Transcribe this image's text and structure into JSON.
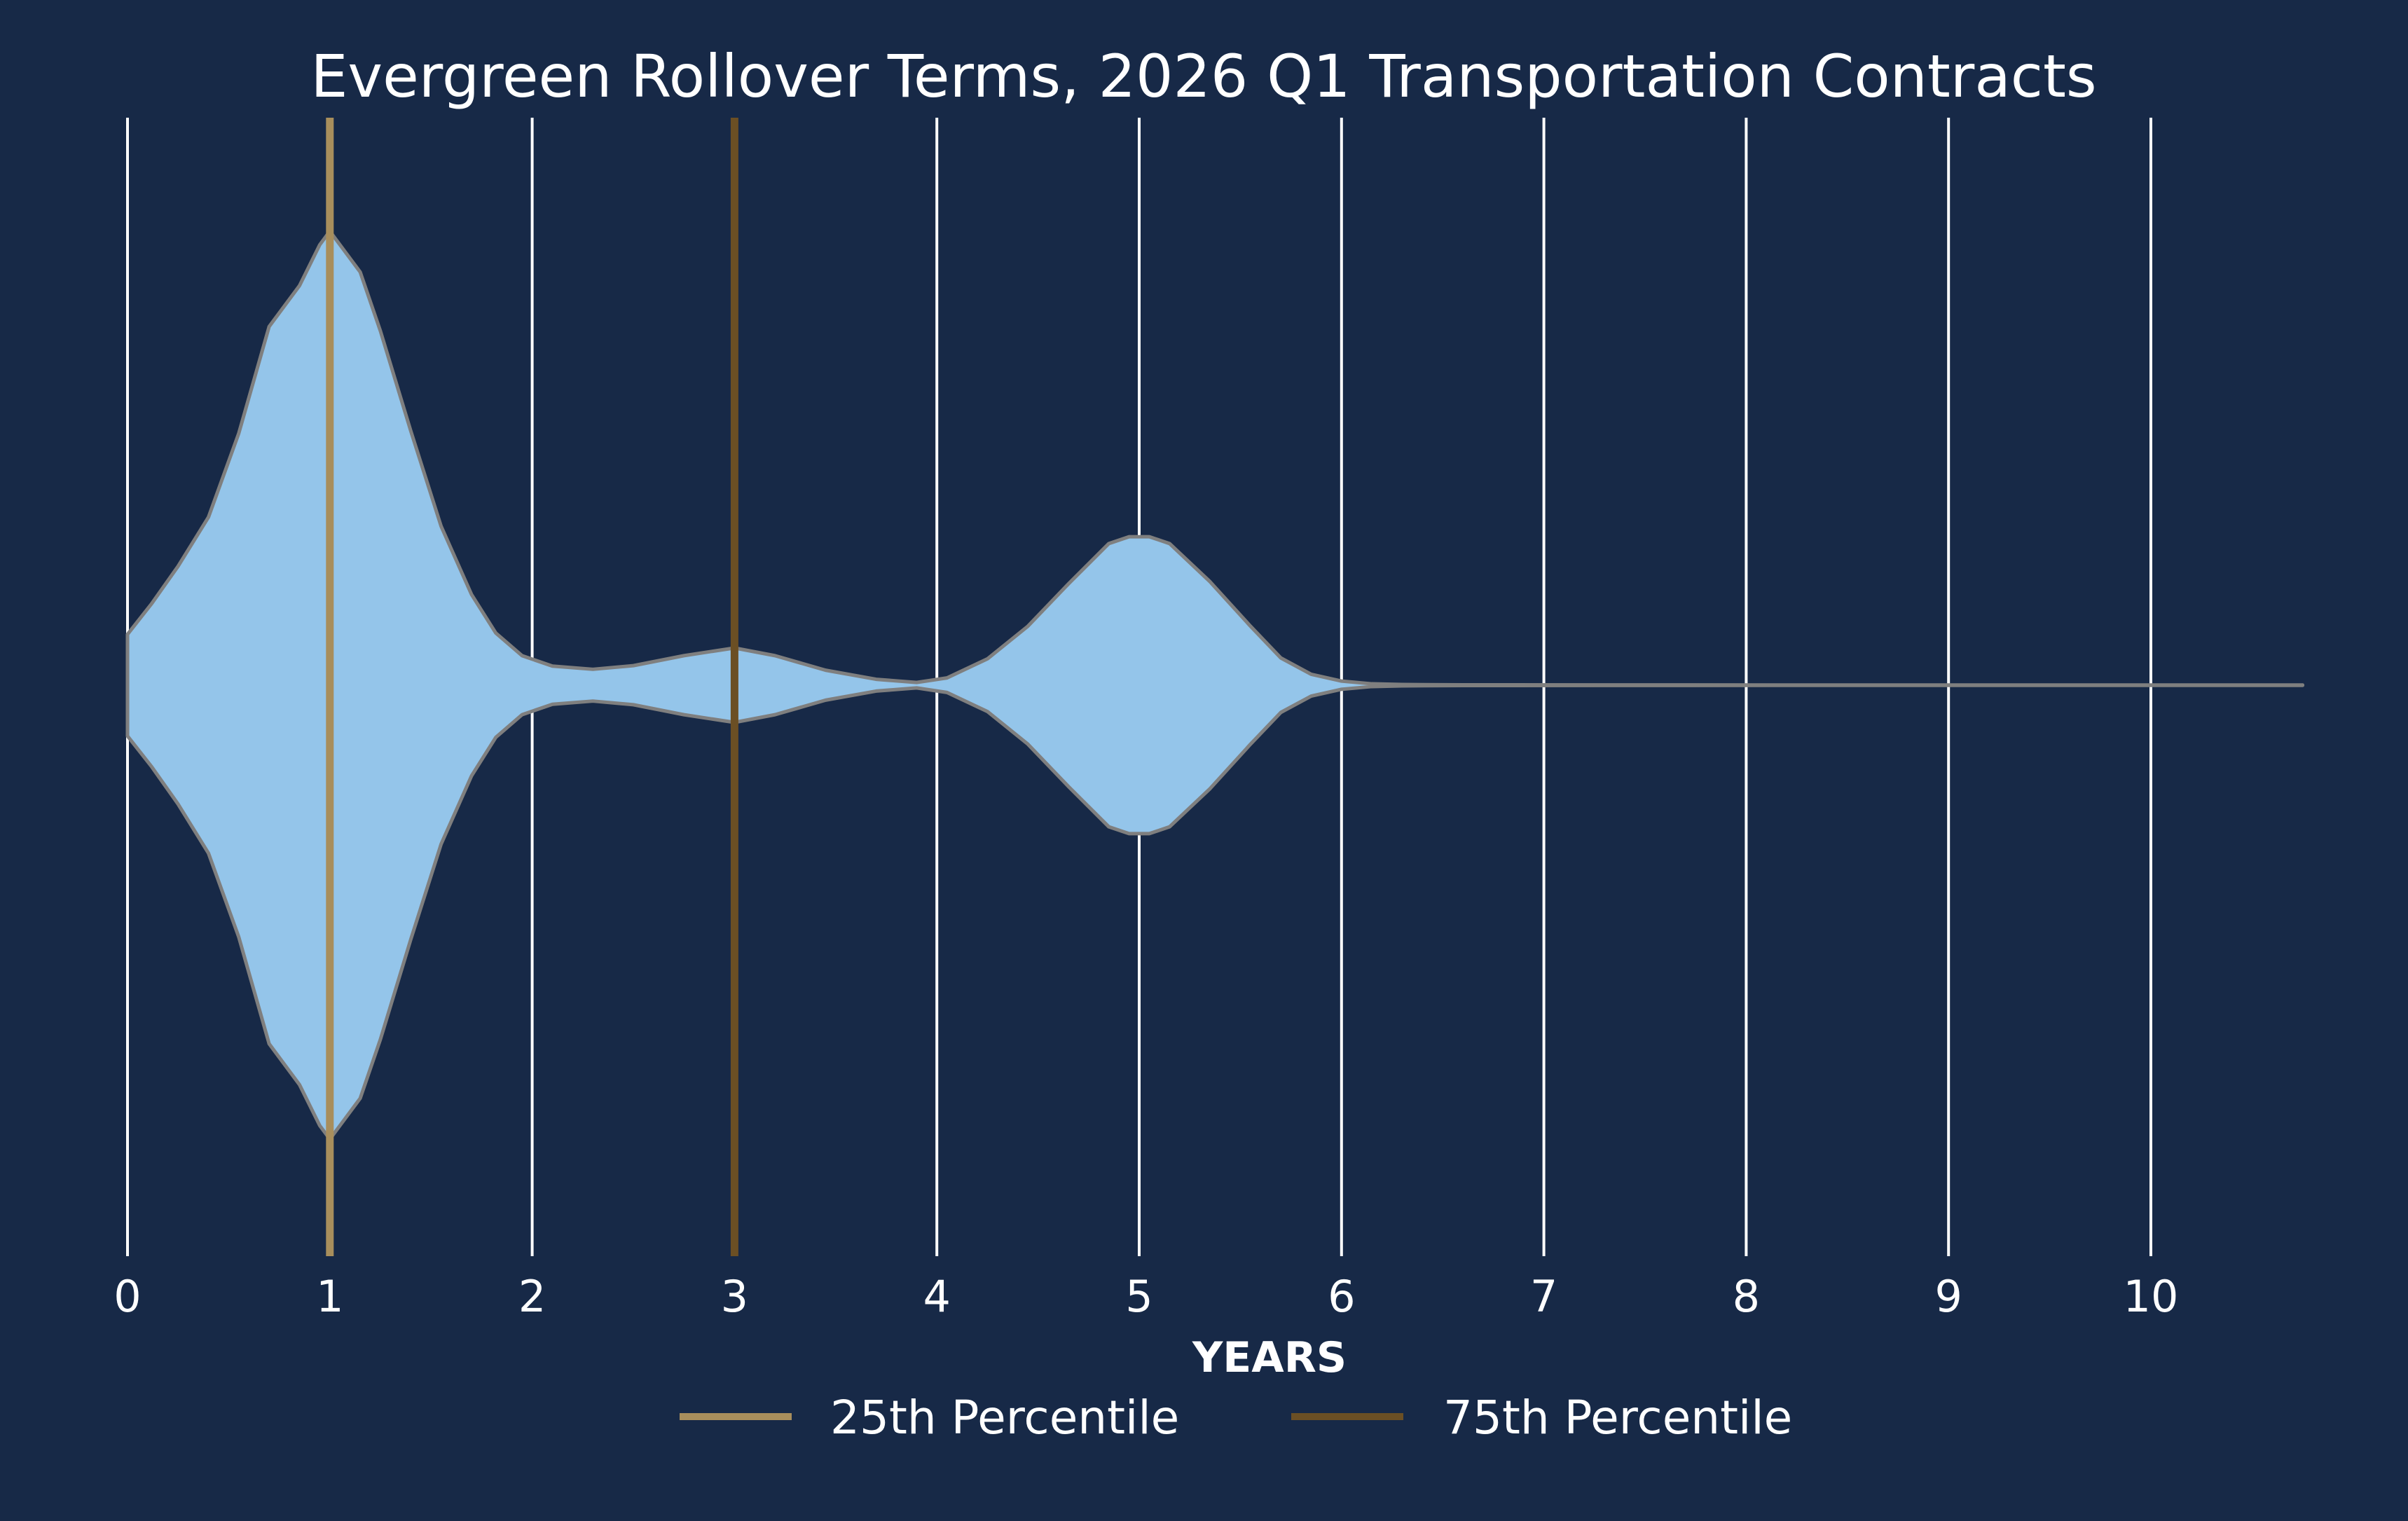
{
  "colors": {
    "background": "#172947",
    "grid": "#ffffff",
    "violin_fill": "#94c5ea",
    "violin_edge": "#7f7f7f",
    "p25": "#a88e5c",
    "p75": "#6b4f24"
  },
  "chart_data": {
    "type": "violin",
    "title": "Evergreen Rollover Terms, 2026 Q1 Transportation Contracts",
    "xlabel": "YEARS",
    "ylabel": "",
    "xlim": [
      0,
      11
    ],
    "x_ticks": [
      "0",
      "1",
      "2",
      "3",
      "4",
      "5",
      "6",
      "7",
      "8",
      "9",
      "10"
    ],
    "grid": "vertical",
    "legend_position": "bottom",
    "density": {
      "x": [
        0,
        0.12,
        0.25,
        0.4,
        0.55,
        0.7,
        0.85,
        0.95,
        1.0,
        1.05,
        1.15,
        1.25,
        1.4,
        1.55,
        1.7,
        1.82,
        1.95,
        2.1,
        2.3,
        2.5,
        2.75,
        3.0,
        3.2,
        3.45,
        3.7,
        3.9,
        4.05,
        4.25,
        4.45,
        4.65,
        4.85,
        4.95,
        5.05,
        5.15,
        5.35,
        5.55,
        5.7,
        5.85,
        6.0,
        6.15,
        6.3,
        6.6,
        7.5,
        9.0,
        10.75
      ],
      "width": [
        0.112,
        0.18,
        0.262,
        0.37,
        0.555,
        0.79,
        0.88,
        0.97,
        1.0,
        0.97,
        0.91,
        0.78,
        0.56,
        0.35,
        0.2,
        0.115,
        0.065,
        0.042,
        0.035,
        0.043,
        0.065,
        0.082,
        0.065,
        0.033,
        0.013,
        0.006,
        0.016,
        0.058,
        0.13,
        0.223,
        0.312,
        0.327,
        0.327,
        0.312,
        0.228,
        0.13,
        0.06,
        0.024,
        0.009,
        0.003,
        0.0015,
        0.0008,
        0.0005,
        0.0004,
        0.0003
      ]
    },
    "percentiles": [
      {
        "name": "25th Percentile",
        "value": 1
      },
      {
        "name": "75th Percentile",
        "value": 3
      }
    ]
  }
}
